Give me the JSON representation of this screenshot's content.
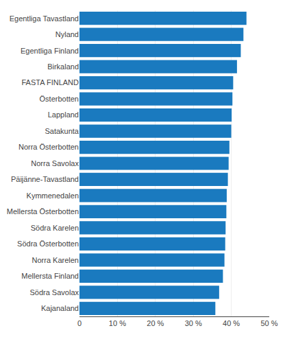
{
  "chart_data": {
    "type": "bar",
    "orientation": "horizontal",
    "categories": [
      "Egentliga Tavastland",
      "Nyland",
      "Egentliga Finland",
      "Birkaland",
      "FASTA FINLAND",
      "Österbotten",
      "Lappland",
      "Satakunta",
      "Norra Österbotten",
      "Norra Savolax",
      "Päijänne-Tavastland",
      "Kymmenedalen",
      "Mellersta Österbotten",
      "Södra Karelen",
      "Södra Österbotten",
      "Norra Karelen",
      "Mellersta Finland",
      "Södra Savolax",
      "Kajanaland"
    ],
    "values": [
      44.0,
      43.2,
      42.5,
      41.5,
      40.5,
      40.3,
      40.1,
      40.0,
      39.5,
      39.3,
      39.1,
      38.8,
      38.7,
      38.5,
      38.4,
      38.2,
      37.8,
      36.8,
      35.8
    ],
    "color": "#1a7abf",
    "xlim": [
      0,
      50
    ],
    "xticks": [
      0,
      {
        "value": 10,
        "label": "10 %"
      },
      {
        "value": 20,
        "label": "20 %"
      },
      {
        "value": 30,
        "label": "30 %"
      },
      {
        "value": 40,
        "label": "40 %"
      },
      {
        "value": 50,
        "label": "50 %"
      }
    ],
    "grid": true
  }
}
